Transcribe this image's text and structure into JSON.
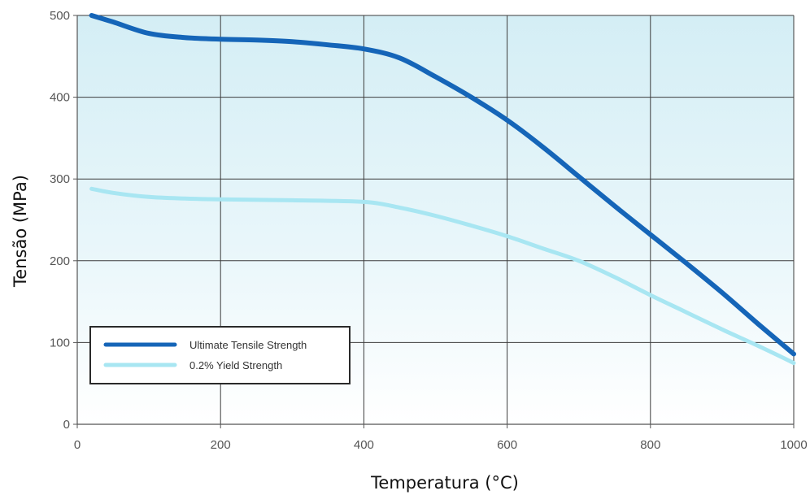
{
  "chart_data": {
    "type": "line",
    "xlabel": "Temperatura (°C)",
    "ylabel": "Tensão (MPa)",
    "xlim": [
      0,
      1000
    ],
    "ylim": [
      0,
      500
    ],
    "x_ticks": [
      "0",
      "200",
      "400",
      "600",
      "800",
      "1000"
    ],
    "y_ticks": [
      "0",
      "100",
      "200",
      "300",
      "400",
      "500"
    ],
    "grid": true,
    "legend_position": "bottom-left",
    "series": [
      {
        "name": "Ultimate Tensile Strength",
        "color": "#1565b8",
        "x": [
          20,
          50,
          100,
          150,
          200,
          250,
          300,
          350,
          400,
          450,
          500,
          550,
          600,
          650,
          700,
          750,
          800,
          850,
          900,
          950,
          1000
        ],
        "y": [
          500,
          492,
          478,
          473,
          471,
          470,
          468,
          464,
          459,
          448,
          425,
          400,
          372,
          339,
          303,
          267,
          232,
          197,
          161,
          123,
          86
        ]
      },
      {
        "name": "0.2% Yield Strength",
        "color": "#a8e6f2",
        "x": [
          20,
          50,
          100,
          150,
          200,
          300,
          400,
          450,
          500,
          550,
          600,
          650,
          700,
          750,
          800,
          850,
          900,
          950,
          1000
        ],
        "y": [
          288,
          283,
          278,
          276,
          275,
          274,
          272,
          265,
          255,
          243,
          230,
          215,
          200,
          180,
          158,
          137,
          116,
          96,
          75
        ]
      }
    ]
  }
}
